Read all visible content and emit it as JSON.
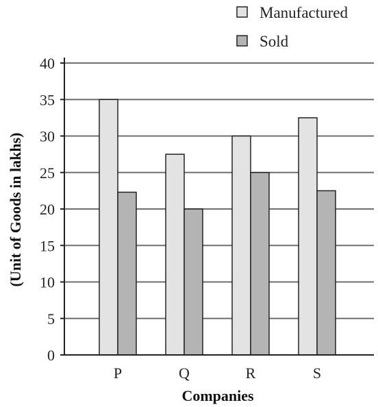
{
  "chart_data": {
    "type": "bar",
    "categories": [
      "P",
      "Q",
      "R",
      "S"
    ],
    "series": [
      {
        "name": "Manufactured",
        "values": [
          35,
          27.5,
          30,
          32.5
        ],
        "color": "#e3e3e3"
      },
      {
        "name": "Sold",
        "values": [
          22.3,
          20,
          25,
          22.5
        ],
        "color": "#b4b4b4"
      }
    ],
    "title": "",
    "xlabel": "Companies",
    "ylabel": "(Unit of Goods in lakhs)",
    "ylim": [
      0,
      40
    ],
    "yticks": [
      0,
      5,
      10,
      15,
      20,
      25,
      30,
      35,
      40
    ],
    "grid": true,
    "legend_position": "top-right"
  }
}
